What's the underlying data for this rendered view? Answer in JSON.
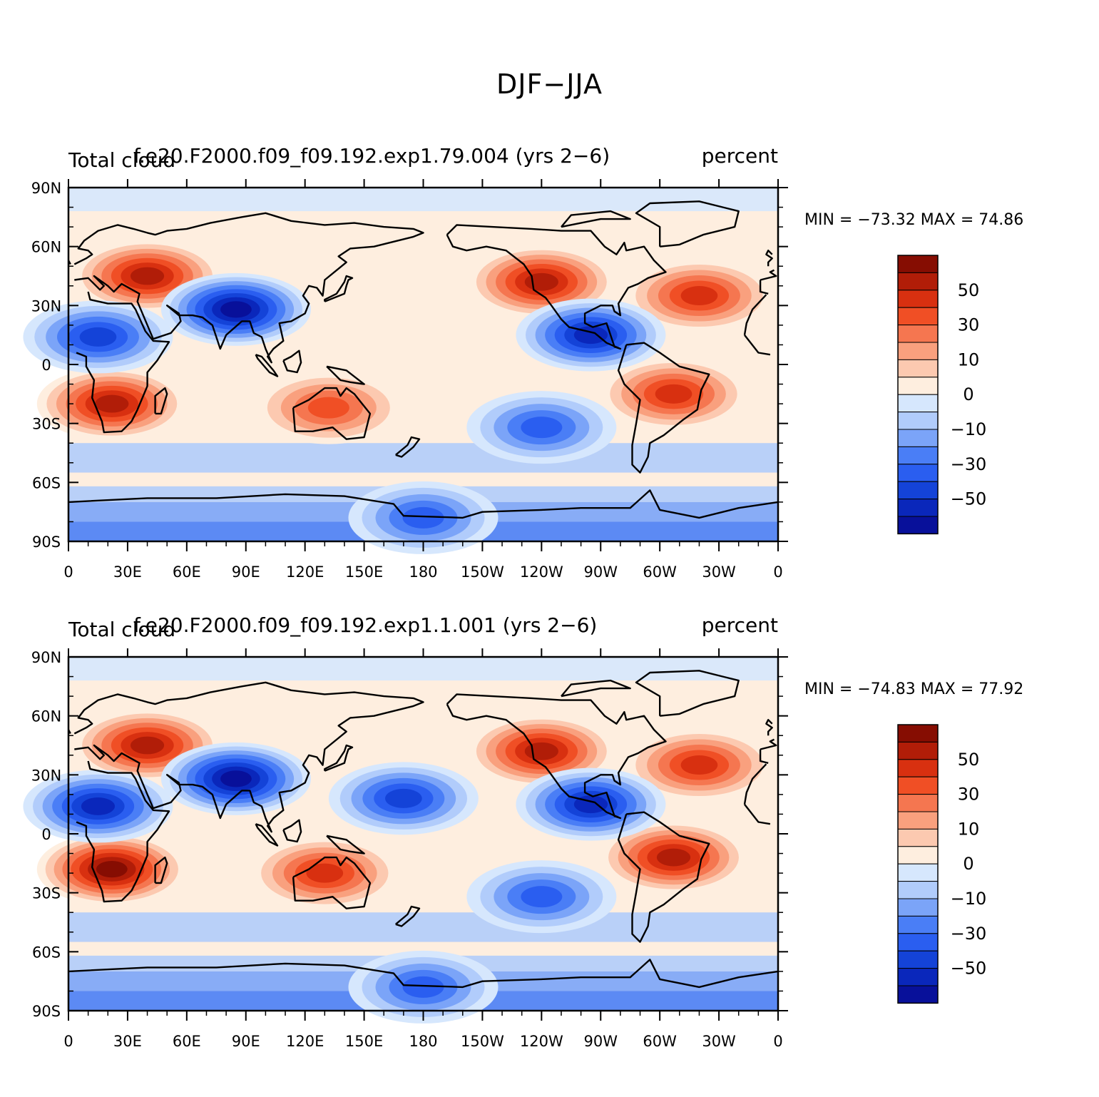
{
  "figure_title": "DJF−JJA",
  "colors": {
    "levels": [
      "#08109a",
      "#0a27bb",
      "#1443d8",
      "#2a5ef0",
      "#4a7ef6",
      "#7ba4f8",
      "#b1ccfb",
      "#d6e7fd",
      "#feeedf",
      "#fcc9b0",
      "#f9a07e",
      "#f57650",
      "#f04f25",
      "#d83010",
      "#b11d08",
      "#860d02"
    ],
    "coast": "#000000"
  },
  "axes": {
    "lat_ticks": [
      "90N",
      "60N",
      "30N",
      "0",
      "30S",
      "60S",
      "90S"
    ],
    "lon_ticks": [
      "0",
      "30E",
      "60E",
      "90E",
      "120E",
      "150E",
      "180",
      "150W",
      "120W",
      "90W",
      "60W",
      "30W",
      "0"
    ]
  },
  "colorbar": {
    "labels": [
      "50",
      "30",
      "10",
      "0",
      "−10",
      "−30",
      "−50"
    ]
  },
  "panels": [
    {
      "left_label": "Total cloud",
      "center_label": "f.e20.F2000.f09_f09.192.exp1.79.004 (yrs 2−6)",
      "right_label": "percent",
      "min_max": "MIN = −73.32  MAX =   74.86"
    },
    {
      "left_label": "Total cloud",
      "center_label": "f.e20.F2000.f09_f09.192.exp1.1.001 (yrs 2−6)",
      "right_label": "percent",
      "min_max": "MIN = −74.83  MAX =   77.92"
    }
  ],
  "chart_data": [
    {
      "type": "heatmap",
      "title": "f.e20.F2000.f09_f09.192.exp1.79.004 (yrs 2−6)",
      "xlabel": "",
      "ylabel": "",
      "xlim": [
        0,
        360
      ],
      "ylim": [
        -90,
        90
      ],
      "units": "percent",
      "min": -73.32,
      "max": 74.86,
      "contour_levels": [
        -70,
        -60,
        -50,
        -40,
        -30,
        -20,
        -10,
        0,
        10,
        20,
        30,
        40,
        50,
        60,
        70
      ],
      "features": [
        {
          "region": "Europe / Central Asia",
          "lon": 40,
          "lat": 45,
          "value": 60
        },
        {
          "region": "Southern Africa",
          "lon": 22,
          "lat": -20,
          "value": 62
        },
        {
          "region": "Australia",
          "lon": 132,
          "lat": -22,
          "value": 40
        },
        {
          "region": "South America (Brazil)",
          "lon": 307,
          "lat": -15,
          "value": 52
        },
        {
          "region": "North Atlantic",
          "lon": 320,
          "lat": 35,
          "value": 45
        },
        {
          "region": "Western North America",
          "lon": 240,
          "lat": 42,
          "value": 55
        },
        {
          "region": "Sahel / North Africa",
          "lon": 15,
          "lat": 14,
          "value": -50
        },
        {
          "region": "South Asia / Tibet",
          "lon": 85,
          "lat": 28,
          "value": -65
        },
        {
          "region": "Central America",
          "lon": 265,
          "lat": 15,
          "value": -55
        },
        {
          "region": "South Pacific (35S)",
          "lon": 240,
          "lat": -32,
          "value": -40
        },
        {
          "region": "Antarctic margin",
          "lon": 180,
          "lat": -78,
          "value": -35
        }
      ]
    },
    {
      "type": "heatmap",
      "title": "f.e20.F2000.f09_f09.192.exp1.1.001 (yrs 2−6)",
      "xlabel": "",
      "ylabel": "",
      "xlim": [
        0,
        360
      ],
      "ylim": [
        -90,
        90
      ],
      "units": "percent",
      "min": -74.83,
      "max": 77.92,
      "contour_levels": [
        -70,
        -60,
        -50,
        -40,
        -30,
        -20,
        -10,
        0,
        10,
        20,
        30,
        40,
        50,
        60,
        70
      ],
      "features": [
        {
          "region": "Europe / Central Asia",
          "lon": 40,
          "lat": 45,
          "value": 62
        },
        {
          "region": "Southern Africa",
          "lon": 22,
          "lat": -18,
          "value": 65
        },
        {
          "region": "Australia",
          "lon": 130,
          "lat": -20,
          "value": 50
        },
        {
          "region": "South America (Brazil)",
          "lon": 307,
          "lat": -12,
          "value": 58
        },
        {
          "region": "North Atlantic",
          "lon": 320,
          "lat": 35,
          "value": 48
        },
        {
          "region": "Western North America",
          "lon": 240,
          "lat": 42,
          "value": 55
        },
        {
          "region": "Sahel / North Africa",
          "lon": 15,
          "lat": 14,
          "value": -55
        },
        {
          "region": "South Asia / Tibet",
          "lon": 85,
          "lat": 28,
          "value": -68
        },
        {
          "region": "North Pacific (20N)",
          "lon": 170,
          "lat": 18,
          "value": -50
        },
        {
          "region": "Central America",
          "lon": 265,
          "lat": 15,
          "value": -55
        },
        {
          "region": "South Pacific (35S)",
          "lon": 240,
          "lat": -32,
          "value": -40
        },
        {
          "region": "Antarctic margin",
          "lon": 180,
          "lat": -78,
          "value": -35
        }
      ]
    }
  ]
}
